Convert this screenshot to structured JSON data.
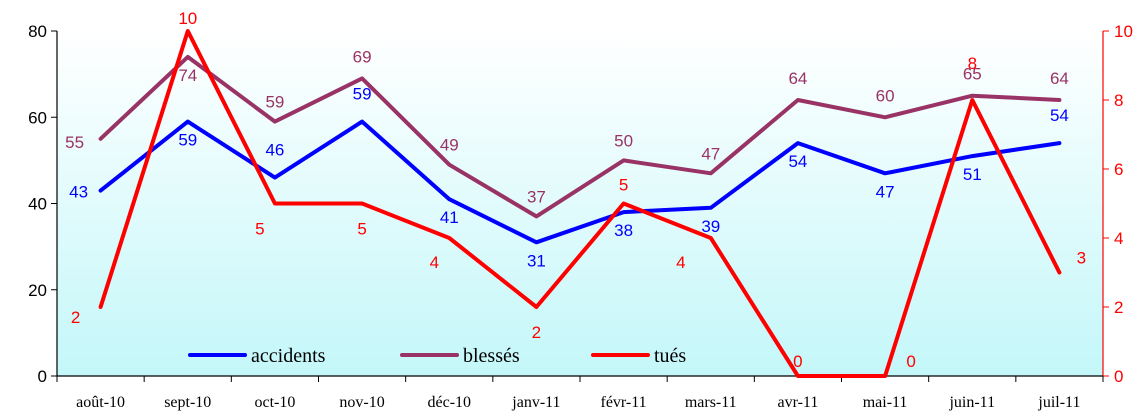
{
  "chart_data": {
    "type": "line",
    "categories": [
      "août-10",
      "sept-10",
      "oct-10",
      "nov-10",
      "déc-10",
      "janv-11",
      "févr-11",
      "mars-11",
      "avr-11",
      "mai-11",
      "juin-11",
      "juil-11"
    ],
    "series": [
      {
        "name": "accidents",
        "axis": "left",
        "color": "#0000ff",
        "values": [
          43,
          59,
          46,
          59,
          41,
          31,
          38,
          39,
          54,
          47,
          51,
          54
        ]
      },
      {
        "name": "blessés",
        "axis": "left",
        "color": "#993366",
        "values": [
          55,
          74,
          59,
          69,
          49,
          37,
          50,
          47,
          64,
          60,
          65,
          64
        ]
      },
      {
        "name": "tués",
        "axis": "right",
        "color": "#ff0000",
        "values": [
          2,
          10,
          5,
          5,
          4,
          2,
          5,
          4,
          0,
          0,
          8,
          3
        ]
      }
    ],
    "ylim_left": [
      0,
      80
    ],
    "yticks_left": [
      0,
      20,
      40,
      60,
      80
    ],
    "ylim_right": [
      0,
      10
    ],
    "yticks_right": [
      0,
      2,
      4,
      6,
      8,
      10
    ],
    "legend_position": "bottom-center",
    "background": "gradient white to light cyan"
  }
}
